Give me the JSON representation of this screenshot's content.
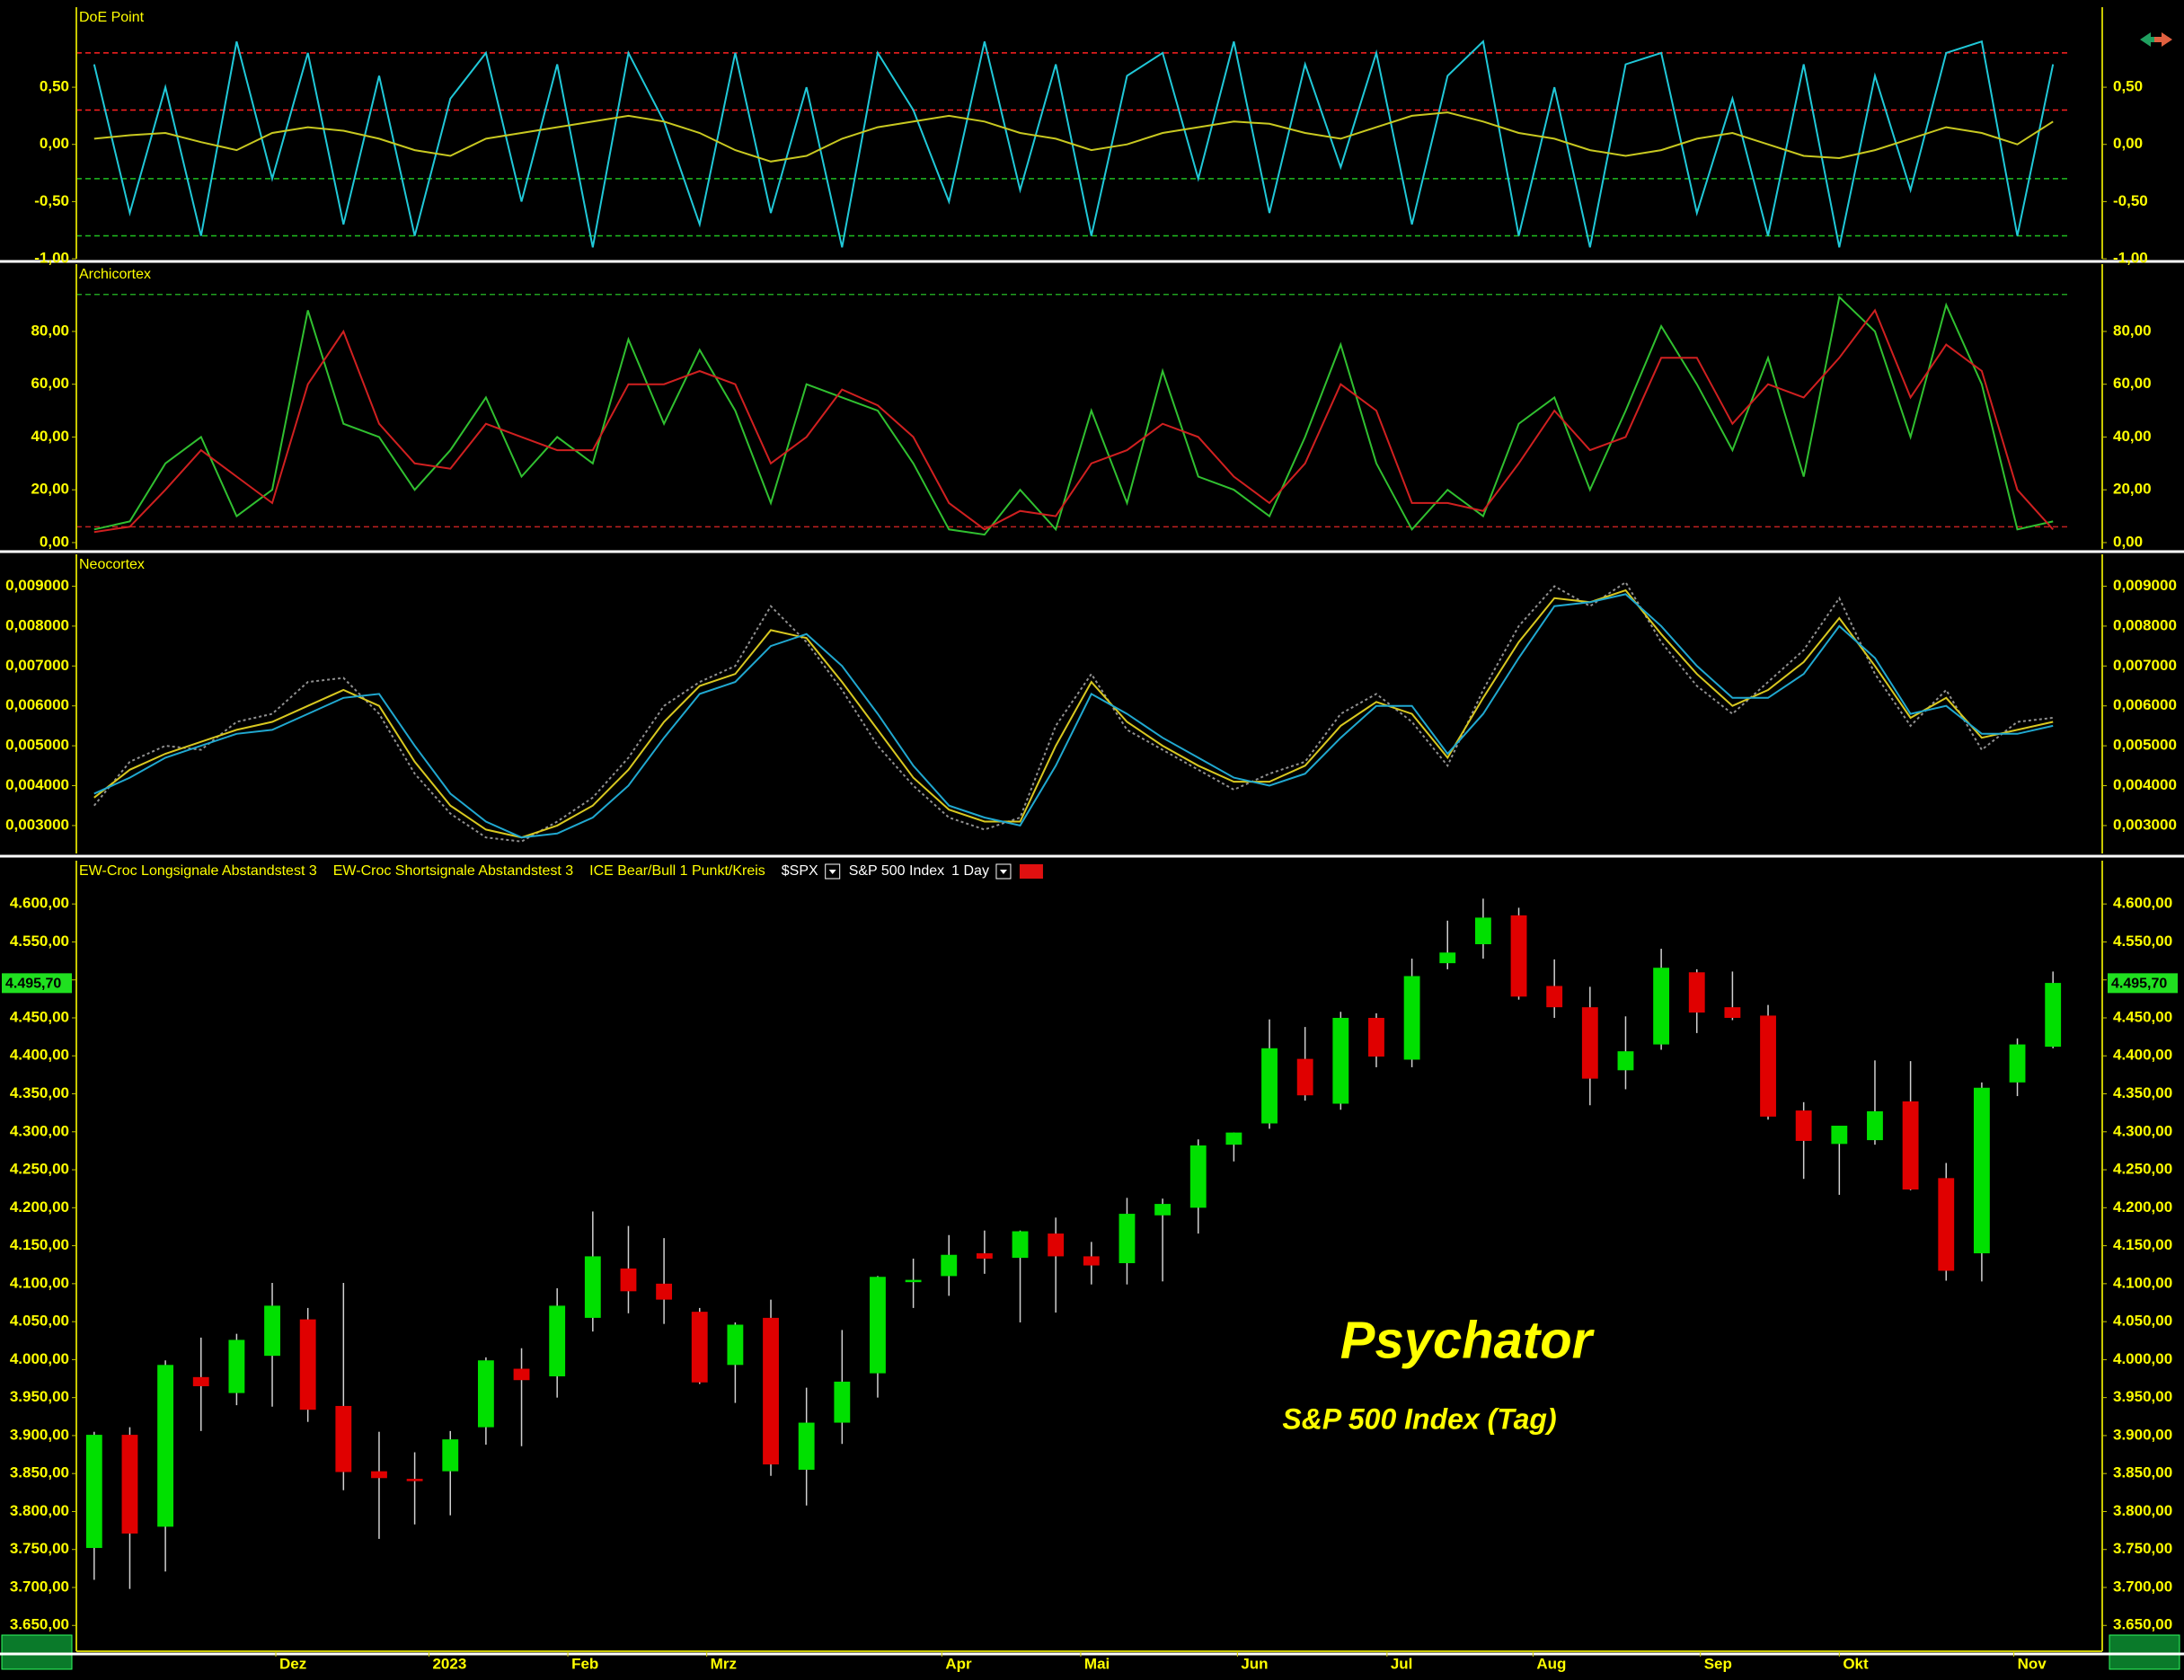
{
  "chart_data": [
    {
      "type": "line",
      "title": "DoE Point",
      "ylim": [
        -1.0,
        1.2
      ],
      "yticks": [
        {
          "value": 0.5,
          "label": "0,50"
        },
        {
          "value": 0,
          "label": "0,00"
        },
        {
          "value": -0.5,
          "label": "-0,50"
        },
        {
          "value": -1,
          "label": "-1,00"
        }
      ],
      "reference_lines": [
        {
          "value": 0.8,
          "color": "#ff2020"
        },
        {
          "value": 0.3,
          "color": "#ff2020"
        },
        {
          "value": -0.3,
          "color": "#20c020"
        },
        {
          "value": -0.8,
          "color": "#20c020"
        }
      ],
      "series": [
        {
          "color": "#20c8d8",
          "values": [
            0.7,
            -0.6,
            0.5,
            -0.8,
            0.9,
            -0.3,
            0.8,
            -0.7,
            0.6,
            -0.8,
            0.4,
            0.8,
            -0.5,
            0.7,
            -0.9,
            0.8,
            0.2,
            -0.7,
            0.8,
            -0.6,
            0.5,
            -0.9,
            0.8,
            0.3,
            -0.5,
            0.9,
            -0.4,
            0.7,
            -0.8,
            0.6,
            0.8,
            -0.3,
            0.9,
            -0.6,
            0.7,
            -0.2,
            0.8,
            -0.7,
            0.6,
            0.9,
            -0.8,
            0.5,
            -0.9,
            0.7,
            0.8,
            -0.6,
            0.4,
            -0.8,
            0.7,
            -0.9,
            0.6,
            -0.4,
            0.8,
            0.9,
            -0.8,
            0.7
          ]
        },
        {
          "color": "#c8c820",
          "values": [
            0.05,
            0.08,
            0.1,
            0.02,
            -0.05,
            0.1,
            0.15,
            0.12,
            0.05,
            -0.05,
            -0.1,
            0.05,
            0.1,
            0.15,
            0.2,
            0.25,
            0.2,
            0.1,
            -0.05,
            -0.15,
            -0.1,
            0.05,
            0.15,
            0.2,
            0.25,
            0.2,
            0.1,
            0.05,
            -0.05,
            0,
            0.1,
            0.15,
            0.2,
            0.18,
            0.1,
            0.05,
            0.15,
            0.25,
            0.28,
            0.2,
            0.1,
            0.05,
            -0.05,
            -0.1,
            -0.05,
            0.05,
            0.1,
            0,
            -0.1,
            -0.12,
            -0.05,
            0.05,
            0.15,
            0.1,
            0,
            0.2
          ]
        }
      ]
    },
    {
      "type": "line",
      "title": "Archicortex",
      "ylim": [
        -2.4,
        105.5
      ],
      "yticks": [
        {
          "value": 80,
          "label": "80,00"
        },
        {
          "value": 60,
          "label": "60,00"
        },
        {
          "value": 40,
          "label": "40,00"
        },
        {
          "value": 20,
          "label": "20,00"
        },
        {
          "value": 0,
          "label": "0,00"
        }
      ],
      "reference_lines": [
        {
          "value": 94,
          "color": "#20a020"
        },
        {
          "value": 6,
          "color": "#c02020"
        }
      ],
      "series": [
        {
          "color": "#30c030",
          "values": [
            5,
            8,
            30,
            40,
            10,
            20,
            88,
            45,
            40,
            20,
            35,
            55,
            25,
            40,
            30,
            77,
            45,
            73,
            50,
            15,
            60,
            55,
            50,
            30,
            5,
            3,
            20,
            5,
            50,
            15,
            65,
            25,
            20,
            10,
            40,
            75,
            30,
            5,
            20,
            10,
            45,
            55,
            20,
            50,
            82,
            60,
            35,
            70,
            25,
            93,
            80,
            40,
            90,
            60,
            5,
            8
          ]
        },
        {
          "color": "#d02020",
          "values": [
            4,
            6,
            20,
            35,
            25,
            15,
            60,
            80,
            45,
            30,
            28,
            45,
            40,
            35,
            35,
            60,
            60,
            65,
            60,
            30,
            40,
            58,
            52,
            40,
            15,
            5,
            12,
            10,
            30,
            35,
            45,
            40,
            25,
            15,
            30,
            60,
            50,
            15,
            15,
            12,
            30,
            50,
            35,
            40,
            70,
            70,
            45,
            60,
            55,
            70,
            88,
            55,
            75,
            65,
            20,
            5
          ]
        }
      ]
    },
    {
      "type": "line",
      "title": "Neocortex",
      "ylim": [
        0.0023,
        0.0098
      ],
      "yticks": [
        {
          "value": 0.009,
          "label": "0,009000"
        },
        {
          "value": 0.008,
          "label": "0,008000"
        },
        {
          "value": 0.007,
          "label": "0,007000"
        },
        {
          "value": 0.006,
          "label": "0,006000"
        },
        {
          "value": 0.005,
          "label": "0,005000"
        },
        {
          "value": 0.004,
          "label": "0,004000"
        },
        {
          "value": 0.003,
          "label": "0,003000"
        }
      ],
      "series": [
        {
          "color": "#909090",
          "style": "dotted",
          "values": [
            0.0035,
            0.0046,
            0.005,
            0.0049,
            0.0056,
            0.0058,
            0.0066,
            0.0067,
            0.0058,
            0.0043,
            0.0033,
            0.0027,
            0.0026,
            0.0031,
            0.0037,
            0.0047,
            0.006,
            0.0066,
            0.007,
            0.0085,
            0.0076,
            0.0064,
            0.005,
            0.004,
            0.0032,
            0.0029,
            0.0032,
            0.0055,
            0.0068,
            0.0054,
            0.0049,
            0.0044,
            0.0039,
            0.0043,
            0.0046,
            0.0058,
            0.0063,
            0.0056,
            0.0045,
            0.0064,
            0.008,
            0.009,
            0.0085,
            0.0091,
            0.0076,
            0.0065,
            0.0058,
            0.0066,
            0.0074,
            0.0087,
            0.0068,
            0.0055,
            0.0064,
            0.0049,
            0.0056,
            0.0057
          ]
        },
        {
          "color": "#d8c820",
          "values": [
            0.0037,
            0.0044,
            0.0048,
            0.0051,
            0.0054,
            0.0056,
            0.006,
            0.0064,
            0.006,
            0.0046,
            0.0035,
            0.0029,
            0.0027,
            0.003,
            0.0035,
            0.0044,
            0.0056,
            0.0065,
            0.0068,
            0.0079,
            0.0077,
            0.0066,
            0.0054,
            0.0042,
            0.0034,
            0.0031,
            0.0031,
            0.005,
            0.0066,
            0.0056,
            0.005,
            0.0045,
            0.0041,
            0.0041,
            0.0045,
            0.0055,
            0.0061,
            0.0058,
            0.0047,
            0.0062,
            0.0076,
            0.0087,
            0.0086,
            0.0089,
            0.0078,
            0.0068,
            0.006,
            0.0064,
            0.0071,
            0.0082,
            0.007,
            0.0057,
            0.0062,
            0.0052,
            0.0054,
            0.0056
          ]
        },
        {
          "color": "#20a8d0",
          "values": [
            0.0038,
            0.0042,
            0.0047,
            0.005,
            0.0053,
            0.0054,
            0.0058,
            0.0062,
            0.0063,
            0.005,
            0.0038,
            0.0031,
            0.0027,
            0.0028,
            0.0032,
            0.004,
            0.0052,
            0.0063,
            0.0066,
            0.0075,
            0.0078,
            0.007,
            0.0058,
            0.0045,
            0.0035,
            0.0032,
            0.003,
            0.0045,
            0.0063,
            0.0058,
            0.0052,
            0.0047,
            0.0042,
            0.004,
            0.0043,
            0.0052,
            0.006,
            0.006,
            0.0048,
            0.0058,
            0.0072,
            0.0085,
            0.0086,
            0.0088,
            0.008,
            0.007,
            0.0062,
            0.0062,
            0.0068,
            0.008,
            0.0072,
            0.0058,
            0.006,
            0.0053,
            0.0053,
            0.0055
          ]
        }
      ]
    },
    {
      "type": "candlestick",
      "legend": [
        "EW-Croc Longsignale Abstandstest 3",
        "EW-Croc Shortsignale Abstandstest 3",
        "ICE Bear/Bull 1 Punkt/Kreis"
      ],
      "symbol": "$SPX",
      "instrument": "S&P 500 Index",
      "interval": "1 Day",
      "watermark": "Psychator",
      "subtitle": "S&P 500 Index (Tag)",
      "up_color": "#00e000",
      "down_color": "#e00000",
      "price_label": {
        "value": 4495.7,
        "label": "4.495,70"
      },
      "ylim": [
        3616,
        4657
      ],
      "yticks": [
        {
          "value": 4600,
          "label": "4.600,00"
        },
        {
          "value": 4550,
          "label": "4.550,00"
        },
        {
          "value": 4500,
          "label": "4.500,00"
        },
        {
          "value": 4450,
          "label": "4.450,00"
        },
        {
          "value": 4400,
          "label": "4.400,00"
        },
        {
          "value": 4350,
          "label": "4.350,00"
        },
        {
          "value": 4300,
          "label": "4.300,00"
        },
        {
          "value": 4250,
          "label": "4.250,00"
        },
        {
          "value": 4200,
          "label": "4.200,00"
        },
        {
          "value": 4150,
          "label": "4.150,00"
        },
        {
          "value": 4100,
          "label": "4.100,00"
        },
        {
          "value": 4050,
          "label": "4.050,00"
        },
        {
          "value": 4000,
          "label": "4.000,00"
        },
        {
          "value": 3950,
          "label": "3.950,00"
        },
        {
          "value": 3900,
          "label": "3.900,00"
        },
        {
          "value": 3850,
          "label": "3.850,00"
        },
        {
          "value": 3800,
          "label": "3.800,00"
        },
        {
          "value": 3750,
          "label": "3.750,00"
        },
        {
          "value": 3700,
          "label": "3.700,00"
        },
        {
          "value": 3650,
          "label": "3.650,00"
        }
      ],
      "xlim": [
        -0.5,
        55.5
      ],
      "xticks": [
        {
          "value": 5.1,
          "label": "Dez"
        },
        {
          "value": 9.4,
          "label": "2023"
        },
        {
          "value": 13.3,
          "label": "Feb"
        },
        {
          "value": 17.2,
          "label": "Mrz"
        },
        {
          "value": 23.8,
          "label": "Apr"
        },
        {
          "value": 27.7,
          "label": "Mai"
        },
        {
          "value": 32.1,
          "label": "Jun"
        },
        {
          "value": 36.3,
          "label": "Jul"
        },
        {
          "value": 40.4,
          "label": "Aug"
        },
        {
          "value": 45.1,
          "label": "Sep"
        },
        {
          "value": 49.0,
          "label": "Okt"
        },
        {
          "value": 53.9,
          "label": "Nov"
        }
      ],
      "open": [
        3752,
        3901,
        3780,
        3977,
        3956,
        4005,
        4053,
        3939,
        3853,
        3843,
        3853,
        3911,
        3988,
        3978,
        4055,
        4120,
        4100,
        4063,
        3993,
        4055,
        3855,
        3917,
        3982,
        4102,
        4110,
        4140,
        4134,
        4166,
        4136,
        4127,
        4190,
        4200,
        4283,
        4311,
        4396,
        4337,
        4450,
        4395,
        4522,
        4547,
        4585,
        4492,
        4464,
        4381,
        4415,
        4510,
        4464,
        4453,
        4328,
        4284,
        4289,
        4340,
        4239,
        4140,
        4365,
        4412
      ],
      "high": [
        3905,
        3911,
        3999,
        4029,
        4034,
        4101,
        4068,
        4101,
        3905,
        3878,
        3906,
        4003,
        4015,
        4094,
        4195,
        4176,
        4160,
        4068,
        4049,
        4079,
        3963,
        4039,
        4110,
        4133,
        4164,
        4170,
        4170,
        4187,
        4155,
        4213,
        4212,
        4290,
        4299,
        4448,
        4438,
        4458,
        4456,
        4528,
        4578,
        4607,
        4595,
        4527,
        4491,
        4452,
        4541,
        4514,
        4511,
        4467,
        4339,
        4300,
        4394,
        4393,
        4259,
        4365,
        4423,
        4511
      ],
      "low": [
        3710,
        3698,
        3721,
        3906,
        3940,
        3938,
        3918,
        3828,
        3764,
        3783,
        3795,
        3888,
        3886,
        3950,
        4037,
        4061,
        4047,
        3968,
        3943,
        3847,
        3808,
        3889,
        3950,
        4068,
        4084,
        4113,
        4049,
        4062,
        4099,
        4099,
        4103,
        4166,
        4261,
        4304,
        4341,
        4329,
        4385,
        4385,
        4514,
        4528,
        4474,
        4450,
        4335,
        4356,
        4408,
        4430,
        4447,
        4316,
        4238,
        4217,
        4283,
        4223,
        4104,
        4103,
        4347,
        4410
      ],
      "close": [
        3901,
        3771,
        3993,
        3965,
        4026,
        4071,
        3934,
        3852,
        3844,
        3840,
        3895,
        3999,
        3973,
        4071,
        4136,
        4090,
        4079,
        3970,
        4046,
        3862,
        3917,
        3971,
        4109,
        4105,
        4138,
        4133,
        4169,
        4136,
        4124,
        4192,
        4205,
        4282,
        4299,
        4410,
        4348,
        4450,
        4399,
        4505,
        4536,
        4582,
        4478,
        4464,
        4370,
        4406,
        4516,
        4457,
        4450,
        4320,
        4288,
        4308,
        4327,
        4224,
        4117,
        4358,
        4415,
        4496
      ]
    }
  ]
}
